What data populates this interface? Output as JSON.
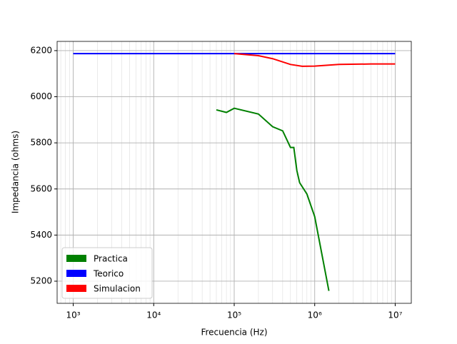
{
  "chart_data": {
    "type": "line",
    "x_label": "Frecuencia (Hz)",
    "y_label": "Impedancia (ohms)",
    "xscale": "log",
    "xlim": [
      631,
      15848932
    ],
    "ylim": [
      5104,
      6240
    ],
    "xticks": [
      {
        "value": 1000,
        "label": "10³"
      },
      {
        "value": 10000,
        "label": "10⁴"
      },
      {
        "value": 100000,
        "label": "10⁵"
      },
      {
        "value": 1000000,
        "label": "10⁶"
      },
      {
        "value": 10000000,
        "label": "10⁷"
      }
    ],
    "yticks": [
      5200,
      5400,
      5600,
      5800,
      6000,
      6200
    ],
    "grid": true,
    "minor_grid": true,
    "legend": "lower left",
    "series": [
      {
        "name": "Practica",
        "color": "#008000",
        "x": [
          60000,
          80000,
          100000,
          200000,
          300000,
          400000,
          500000,
          550000,
          600000,
          650000,
          800000,
          1000000,
          1500000
        ],
        "values": [
          5943,
          5932,
          5950,
          5925,
          5870,
          5852,
          5780,
          5780,
          5680,
          5627,
          5578,
          5480,
          5158
        ]
      },
      {
        "name": "Teorico",
        "color": "#0000ff",
        "x": [
          1000,
          10000000
        ],
        "values": [
          6187,
          6187
        ]
      },
      {
        "name": "Simulacion",
        "color": "#ff0000",
        "x": [
          100000,
          200000,
          300000,
          500000,
          700000,
          1000000,
          2000000,
          5000000,
          10000000
        ],
        "values": [
          6187,
          6178,
          6165,
          6140,
          6132,
          6133,
          6140,
          6142,
          6142
        ]
      }
    ]
  }
}
